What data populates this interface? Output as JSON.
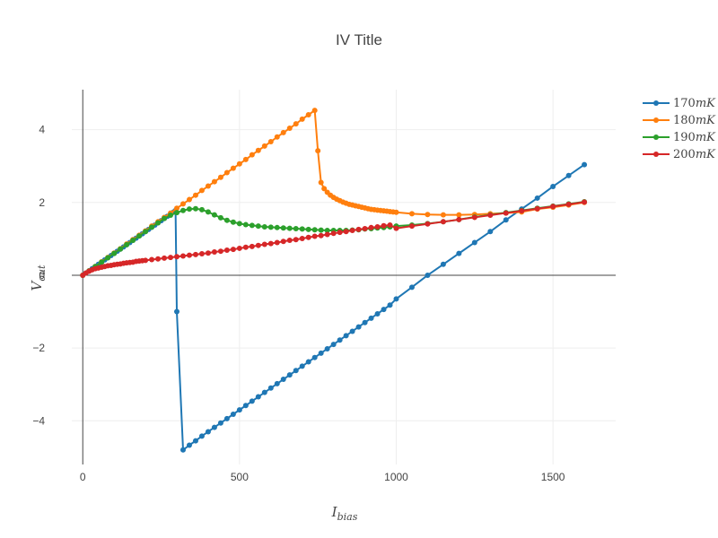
{
  "chart_data": {
    "type": "line",
    "title": "IV Title",
    "xlabel_main": "I",
    "xlabel_sub": "bias",
    "ylabel_main": "V",
    "ylabel_sub": "out",
    "xlim": [
      -35,
      1700
    ],
    "ylim": [
      -5.2,
      5.1
    ],
    "x_ticks": [
      0,
      500,
      1000,
      1500
    ],
    "x_tick_labels": [
      "0",
      "500",
      "1000",
      "1500"
    ],
    "y_ticks": [
      -4,
      -2,
      0,
      2,
      4
    ],
    "y_tick_labels": [
      "−4",
      "−2",
      "0",
      "2",
      "4"
    ],
    "grid": true,
    "legend_position": "top-right",
    "series": [
      {
        "name": "170mK",
        "name_base": "170",
        "name_unit": "mK",
        "color": "#1f77b4",
        "points": [
          [
            0,
            0
          ],
          [
            10,
            0.06
          ],
          [
            20,
            0.12
          ],
          [
            30,
            0.18
          ],
          [
            40,
            0.24
          ],
          [
            50,
            0.3
          ],
          [
            60,
            0.36
          ],
          [
            70,
            0.42
          ],
          [
            80,
            0.48
          ],
          [
            90,
            0.54
          ],
          [
            100,
            0.6
          ],
          [
            110,
            0.66
          ],
          [
            120,
            0.72
          ],
          [
            130,
            0.78
          ],
          [
            140,
            0.84
          ],
          [
            150,
            0.9
          ],
          [
            160,
            0.96
          ],
          [
            170,
            1.02
          ],
          [
            180,
            1.08
          ],
          [
            190,
            1.14
          ],
          [
            200,
            1.2
          ],
          [
            210,
            1.26
          ],
          [
            220,
            1.32
          ],
          [
            230,
            1.38
          ],
          [
            240,
            1.44
          ],
          [
            250,
            1.5
          ],
          [
            260,
            1.56
          ],
          [
            270,
            1.62
          ],
          [
            280,
            1.68
          ],
          [
            290,
            1.74
          ],
          [
            296,
            1.78
          ],
          [
            300,
            -1.0
          ],
          [
            320,
            -4.8
          ],
          [
            340,
            -4.67
          ],
          [
            360,
            -4.55
          ],
          [
            380,
            -4.42
          ],
          [
            400,
            -4.3
          ],
          [
            420,
            -4.18
          ],
          [
            440,
            -4.06
          ],
          [
            460,
            -3.94
          ],
          [
            480,
            -3.82
          ],
          [
            500,
            -3.7
          ],
          [
            520,
            -3.58
          ],
          [
            540,
            -3.46
          ],
          [
            560,
            -3.34
          ],
          [
            580,
            -3.22
          ],
          [
            600,
            -3.1
          ],
          [
            620,
            -2.98
          ],
          [
            640,
            -2.86
          ],
          [
            660,
            -2.74
          ],
          [
            680,
            -2.62
          ],
          [
            700,
            -2.5
          ],
          [
            720,
            -2.38
          ],
          [
            740,
            -2.26
          ],
          [
            760,
            -2.14
          ],
          [
            780,
            -2.02
          ],
          [
            800,
            -1.9
          ],
          [
            820,
            -1.78
          ],
          [
            840,
            -1.66
          ],
          [
            860,
            -1.54
          ],
          [
            880,
            -1.42
          ],
          [
            900,
            -1.3
          ],
          [
            920,
            -1.18
          ],
          [
            940,
            -1.06
          ],
          [
            960,
            -0.94
          ],
          [
            980,
            -0.82
          ],
          [
            1000,
            -0.65
          ],
          [
            1050,
            -0.33
          ],
          [
            1100,
            0.0
          ],
          [
            1150,
            0.3
          ],
          [
            1200,
            0.6
          ],
          [
            1250,
            0.9
          ],
          [
            1300,
            1.2
          ],
          [
            1350,
            1.52
          ],
          [
            1400,
            1.82
          ],
          [
            1450,
            2.12
          ],
          [
            1500,
            2.44
          ],
          [
            1550,
            2.74
          ],
          [
            1600,
            3.04
          ]
        ]
      },
      {
        "name": "180mK",
        "name_base": "180",
        "name_unit": "mK",
        "color": "#ff7f0e",
        "points": [
          [
            0,
            0
          ],
          [
            20,
            0.12
          ],
          [
            40,
            0.24
          ],
          [
            60,
            0.37
          ],
          [
            80,
            0.49
          ],
          [
            100,
            0.61
          ],
          [
            120,
            0.73
          ],
          [
            140,
            0.86
          ],
          [
            160,
            0.98
          ],
          [
            180,
            1.1
          ],
          [
            200,
            1.22
          ],
          [
            220,
            1.35
          ],
          [
            240,
            1.47
          ],
          [
            260,
            1.59
          ],
          [
            280,
            1.71
          ],
          [
            300,
            1.84
          ],
          [
            320,
            1.96
          ],
          [
            340,
            2.08
          ],
          [
            360,
            2.2
          ],
          [
            380,
            2.33
          ],
          [
            400,
            2.45
          ],
          [
            420,
            2.57
          ],
          [
            440,
            2.69
          ],
          [
            460,
            2.82
          ],
          [
            480,
            2.94
          ],
          [
            500,
            3.06
          ],
          [
            520,
            3.18
          ],
          [
            540,
            3.31
          ],
          [
            560,
            3.43
          ],
          [
            580,
            3.55
          ],
          [
            600,
            3.67
          ],
          [
            620,
            3.8
          ],
          [
            640,
            3.92
          ],
          [
            660,
            4.04
          ],
          [
            680,
            4.16
          ],
          [
            700,
            4.29
          ],
          [
            720,
            4.41
          ],
          [
            740,
            4.53
          ],
          [
            750,
            3.42
          ],
          [
            760,
            2.55
          ],
          [
            770,
            2.38
          ],
          [
            780,
            2.28
          ],
          [
            790,
            2.2
          ],
          [
            800,
            2.14
          ],
          [
            810,
            2.09
          ],
          [
            820,
            2.05
          ],
          [
            830,
            2.01
          ],
          [
            840,
            1.98
          ],
          [
            850,
            1.95
          ],
          [
            860,
            1.93
          ],
          [
            870,
            1.91
          ],
          [
            880,
            1.89
          ],
          [
            890,
            1.87
          ],
          [
            900,
            1.85
          ],
          [
            910,
            1.83
          ],
          [
            920,
            1.81
          ],
          [
            930,
            1.8
          ],
          [
            940,
            1.79
          ],
          [
            950,
            1.78
          ],
          [
            960,
            1.77
          ],
          [
            970,
            1.76
          ],
          [
            980,
            1.75
          ],
          [
            990,
            1.74
          ],
          [
            1000,
            1.73
          ],
          [
            1050,
            1.69
          ],
          [
            1100,
            1.67
          ],
          [
            1150,
            1.66
          ],
          [
            1200,
            1.66
          ],
          [
            1250,
            1.67
          ],
          [
            1300,
            1.69
          ],
          [
            1350,
            1.71
          ],
          [
            1400,
            1.74
          ],
          [
            1450,
            1.82
          ],
          [
            1500,
            1.87
          ],
          [
            1550,
            1.93
          ],
          [
            1600,
            2.0
          ]
        ]
      },
      {
        "name": "190mK",
        "name_base": "190",
        "name_unit": "mK",
        "color": "#2ca02c",
        "points": [
          [
            0,
            0
          ],
          [
            20,
            0.12
          ],
          [
            40,
            0.24
          ],
          [
            60,
            0.36
          ],
          [
            80,
            0.48
          ],
          [
            100,
            0.6
          ],
          [
            120,
            0.72
          ],
          [
            140,
            0.84
          ],
          [
            160,
            0.96
          ],
          [
            180,
            1.08
          ],
          [
            200,
            1.2
          ],
          [
            220,
            1.32
          ],
          [
            240,
            1.44
          ],
          [
            260,
            1.56
          ],
          [
            280,
            1.65
          ],
          [
            300,
            1.72
          ],
          [
            320,
            1.78
          ],
          [
            340,
            1.82
          ],
          [
            360,
            1.83
          ],
          [
            380,
            1.8
          ],
          [
            400,
            1.74
          ],
          [
            420,
            1.66
          ],
          [
            440,
            1.58
          ],
          [
            460,
            1.51
          ],
          [
            480,
            1.46
          ],
          [
            500,
            1.42
          ],
          [
            520,
            1.39
          ],
          [
            540,
            1.37
          ],
          [
            560,
            1.35
          ],
          [
            580,
            1.33
          ],
          [
            600,
            1.32
          ],
          [
            620,
            1.31
          ],
          [
            640,
            1.3
          ],
          [
            660,
            1.29
          ],
          [
            680,
            1.28
          ],
          [
            700,
            1.27
          ],
          [
            720,
            1.26
          ],
          [
            740,
            1.25
          ],
          [
            760,
            1.24
          ],
          [
            780,
            1.23
          ],
          [
            800,
            1.23
          ],
          [
            820,
            1.23
          ],
          [
            840,
            1.23
          ],
          [
            860,
            1.24
          ],
          [
            880,
            1.25
          ],
          [
            900,
            1.27
          ],
          [
            920,
            1.28
          ],
          [
            940,
            1.3
          ],
          [
            960,
            1.31
          ],
          [
            980,
            1.33
          ],
          [
            1000,
            1.35
          ],
          [
            1050,
            1.38
          ],
          [
            1100,
            1.42
          ],
          [
            1150,
            1.47
          ],
          [
            1200,
            1.53
          ],
          [
            1250,
            1.6
          ],
          [
            1300,
            1.66
          ],
          [
            1350,
            1.72
          ],
          [
            1400,
            1.78
          ],
          [
            1450,
            1.84
          ],
          [
            1500,
            1.9
          ],
          [
            1550,
            1.96
          ],
          [
            1600,
            2.02
          ]
        ]
      },
      {
        "name": "200mK",
        "name_base": "200",
        "name_unit": "mK",
        "color": "#d62728",
        "points": [
          [
            0,
            0
          ],
          [
            10,
            0.06
          ],
          [
            20,
            0.11
          ],
          [
            30,
            0.15
          ],
          [
            40,
            0.18
          ],
          [
            50,
            0.2
          ],
          [
            60,
            0.22
          ],
          [
            70,
            0.24
          ],
          [
            80,
            0.26
          ],
          [
            90,
            0.27
          ],
          [
            100,
            0.29
          ],
          [
            110,
            0.3
          ],
          [
            120,
            0.31
          ],
          [
            130,
            0.33
          ],
          [
            140,
            0.34
          ],
          [
            150,
            0.35
          ],
          [
            160,
            0.36
          ],
          [
            170,
            0.38
          ],
          [
            180,
            0.39
          ],
          [
            190,
            0.4
          ],
          [
            200,
            0.41
          ],
          [
            220,
            0.43
          ],
          [
            240,
            0.45
          ],
          [
            260,
            0.47
          ],
          [
            280,
            0.49
          ],
          [
            300,
            0.51
          ],
          [
            320,
            0.53
          ],
          [
            340,
            0.55
          ],
          [
            360,
            0.57
          ],
          [
            380,
            0.59
          ],
          [
            400,
            0.61
          ],
          [
            420,
            0.64
          ],
          [
            440,
            0.66
          ],
          [
            460,
            0.69
          ],
          [
            480,
            0.71
          ],
          [
            500,
            0.74
          ],
          [
            520,
            0.77
          ],
          [
            540,
            0.79
          ],
          [
            560,
            0.82
          ],
          [
            580,
            0.85
          ],
          [
            600,
            0.87
          ],
          [
            620,
            0.9
          ],
          [
            640,
            0.93
          ],
          [
            660,
            0.96
          ],
          [
            680,
            0.98
          ],
          [
            700,
            1.01
          ],
          [
            720,
            1.04
          ],
          [
            740,
            1.07
          ],
          [
            760,
            1.09
          ],
          [
            780,
            1.12
          ],
          [
            800,
            1.15
          ],
          [
            820,
            1.18
          ],
          [
            840,
            1.2
          ],
          [
            860,
            1.23
          ],
          [
            880,
            1.26
          ],
          [
            900,
            1.28
          ],
          [
            920,
            1.31
          ],
          [
            940,
            1.33
          ],
          [
            960,
            1.36
          ],
          [
            980,
            1.38
          ],
          [
            1000,
            1.29
          ],
          [
            1050,
            1.35
          ],
          [
            1100,
            1.41
          ],
          [
            1150,
            1.47
          ],
          [
            1200,
            1.53
          ],
          [
            1250,
            1.59
          ],
          [
            1300,
            1.65
          ],
          [
            1350,
            1.71
          ],
          [
            1400,
            1.77
          ],
          [
            1450,
            1.83
          ],
          [
            1500,
            1.89
          ],
          [
            1550,
            1.95
          ],
          [
            1600,
            2.01
          ]
        ]
      }
    ]
  }
}
